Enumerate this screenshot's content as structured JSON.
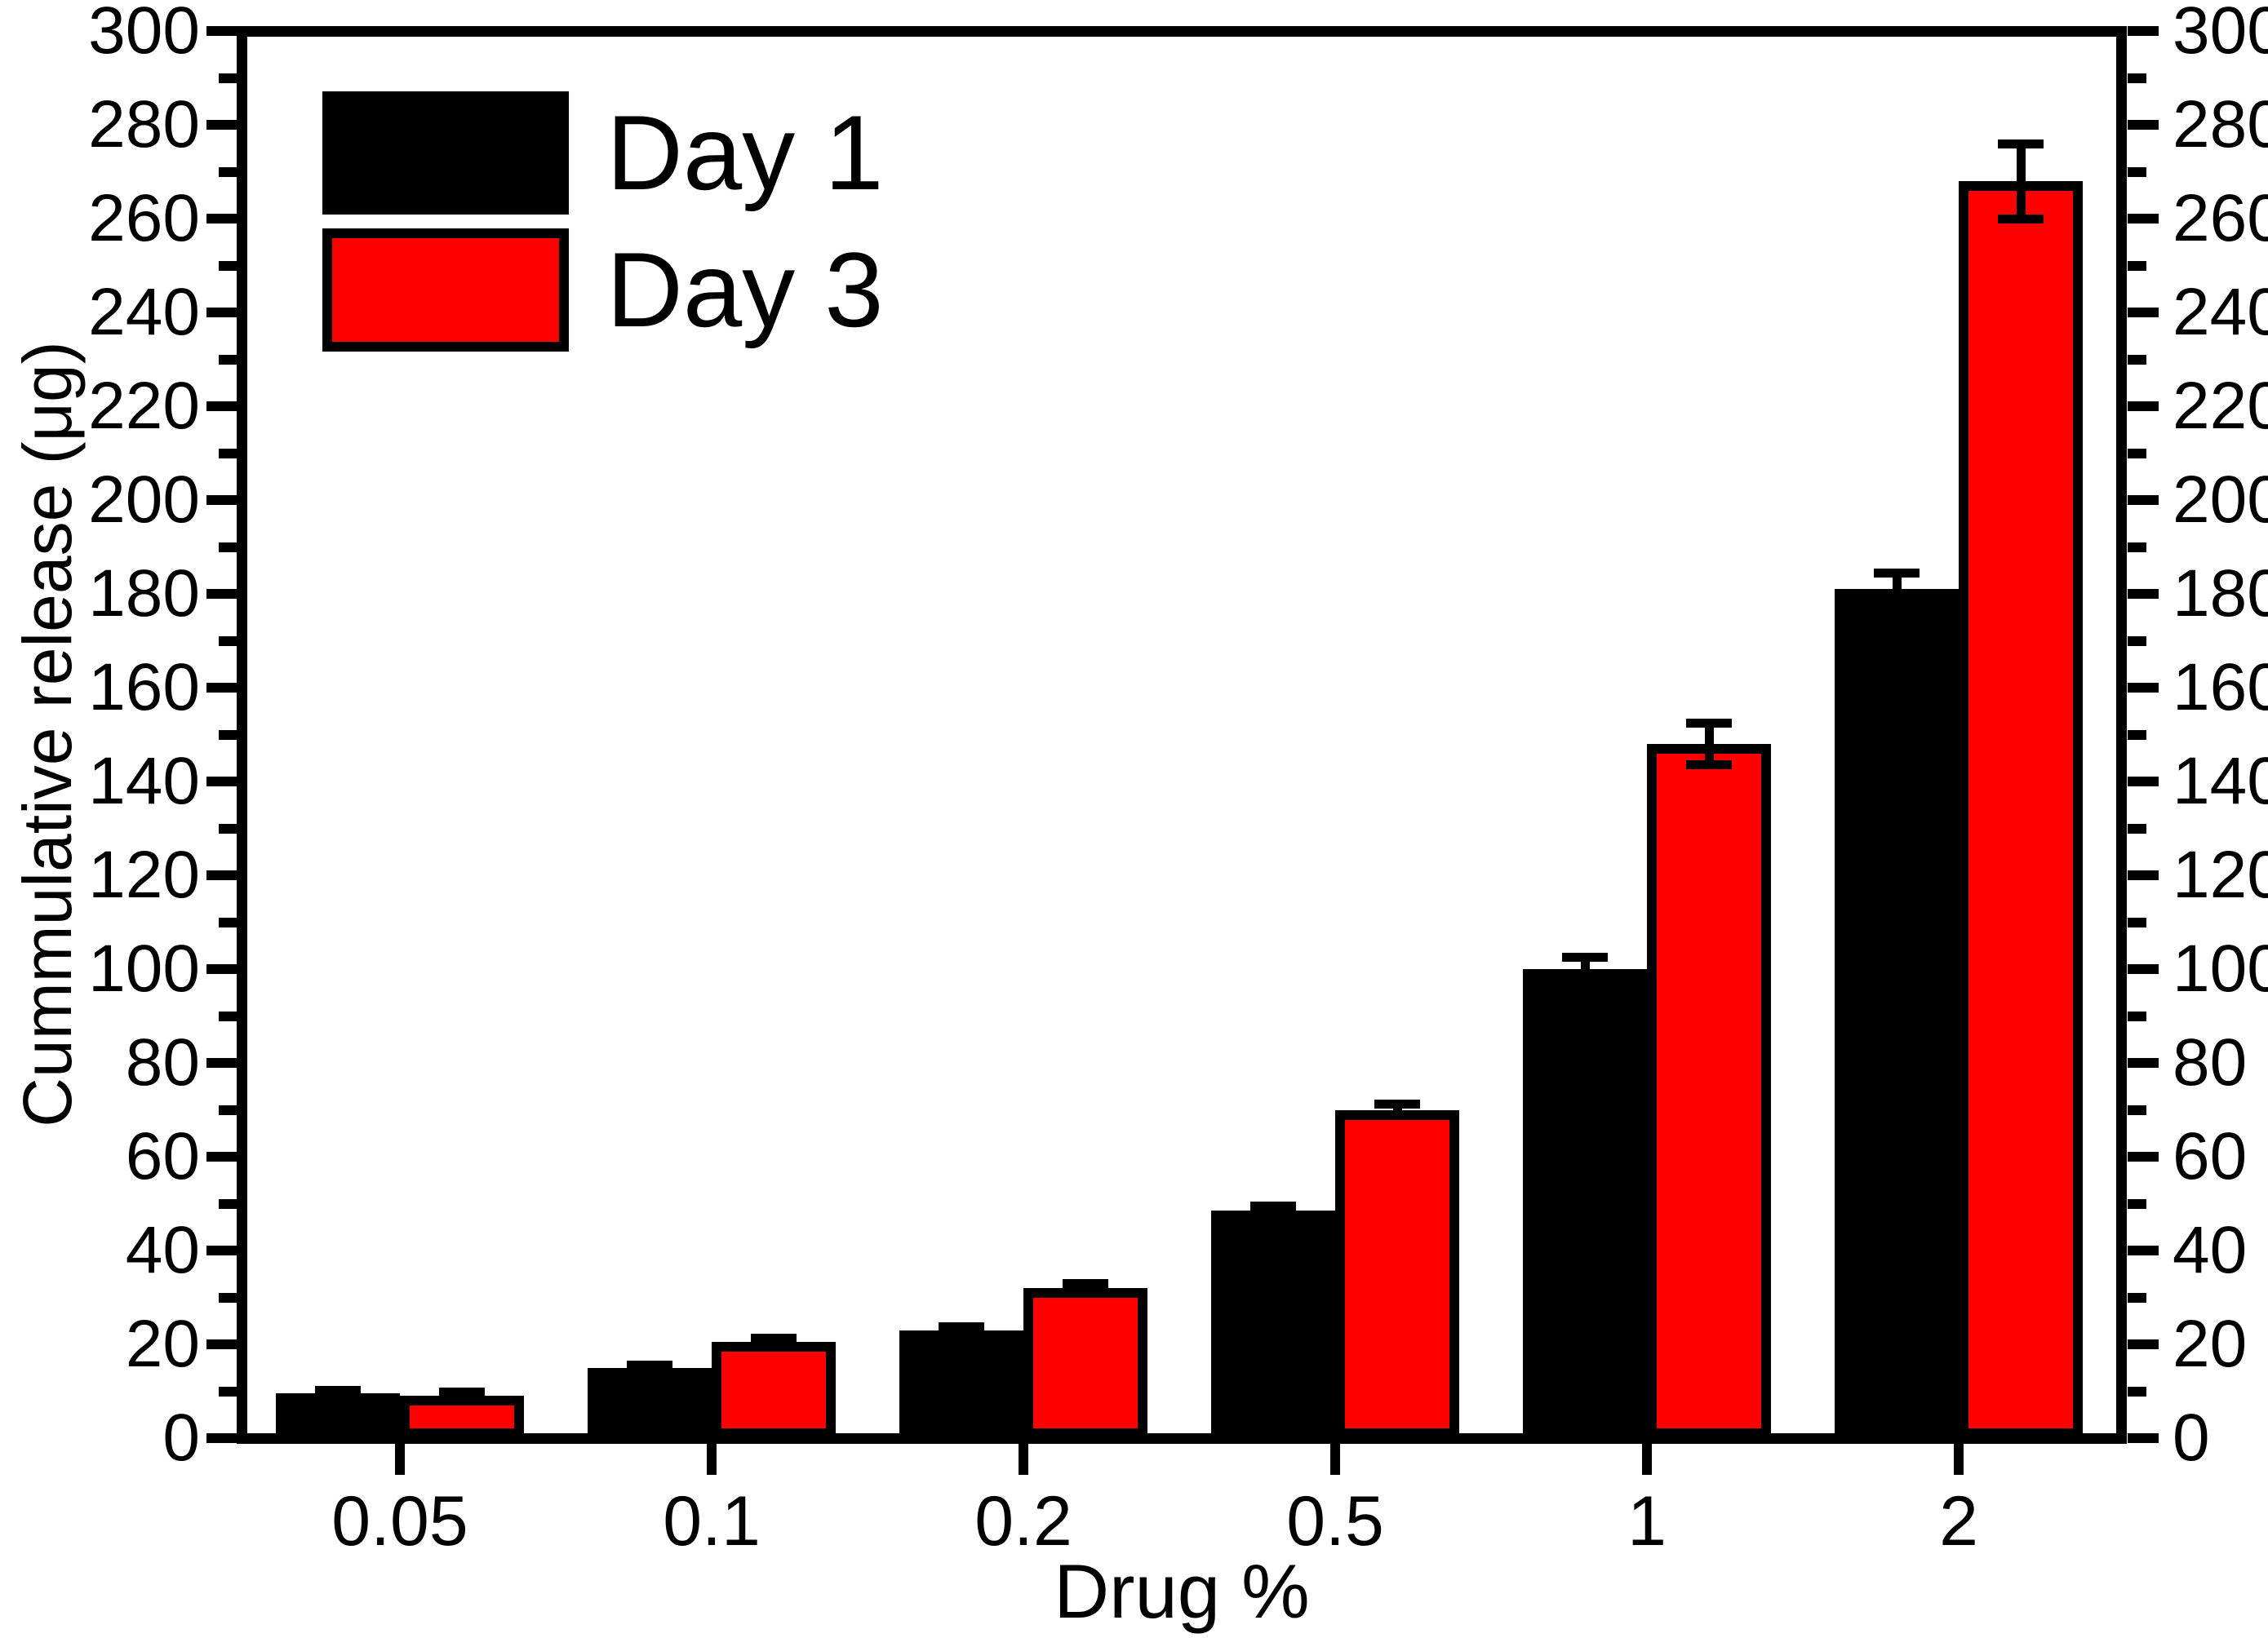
{
  "chart_data": {
    "type": "bar",
    "title": "",
    "xlabel": "Drug %",
    "ylabel": "Cummulative release (μg)",
    "categories": [
      "0.05",
      "0.1",
      "0.2",
      "0.5",
      "1",
      "2"
    ],
    "series": [
      {
        "name": "Day 1",
        "color": "#000000",
        "values": [
          9.5,
          15,
          23,
          48.5,
          100,
          181
        ],
        "errors": [
          0.6,
          0.6,
          0.8,
          1.0,
          2.5,
          3.5
        ]
      },
      {
        "name": "Day 3",
        "color": "#ff0000",
        "values": [
          9,
          20.5,
          32,
          70,
          148,
          268
        ],
        "errors": [
          0.8,
          0.8,
          1.0,
          1.2,
          4.5,
          8.0
        ]
      }
    ],
    "ylim": [
      0,
      300
    ],
    "ytick_step": 20,
    "yminor_step": 10,
    "y_tick_labels": [
      "0",
      "20",
      "40",
      "60",
      "80",
      "100",
      "120",
      "140",
      "160",
      "180",
      "200",
      "220",
      "240",
      "260",
      "280",
      "300"
    ],
    "right_axis_mirror": true,
    "grid": false,
    "legend_position": "top-left",
    "legend": [
      {
        "label": "Day 1",
        "color": "#000000"
      },
      {
        "label": "Day 3",
        "color": "#ff0000"
      }
    ],
    "error_bar_color": "#000000",
    "axis_color": "#000000",
    "background_color": "#ffffff"
  }
}
